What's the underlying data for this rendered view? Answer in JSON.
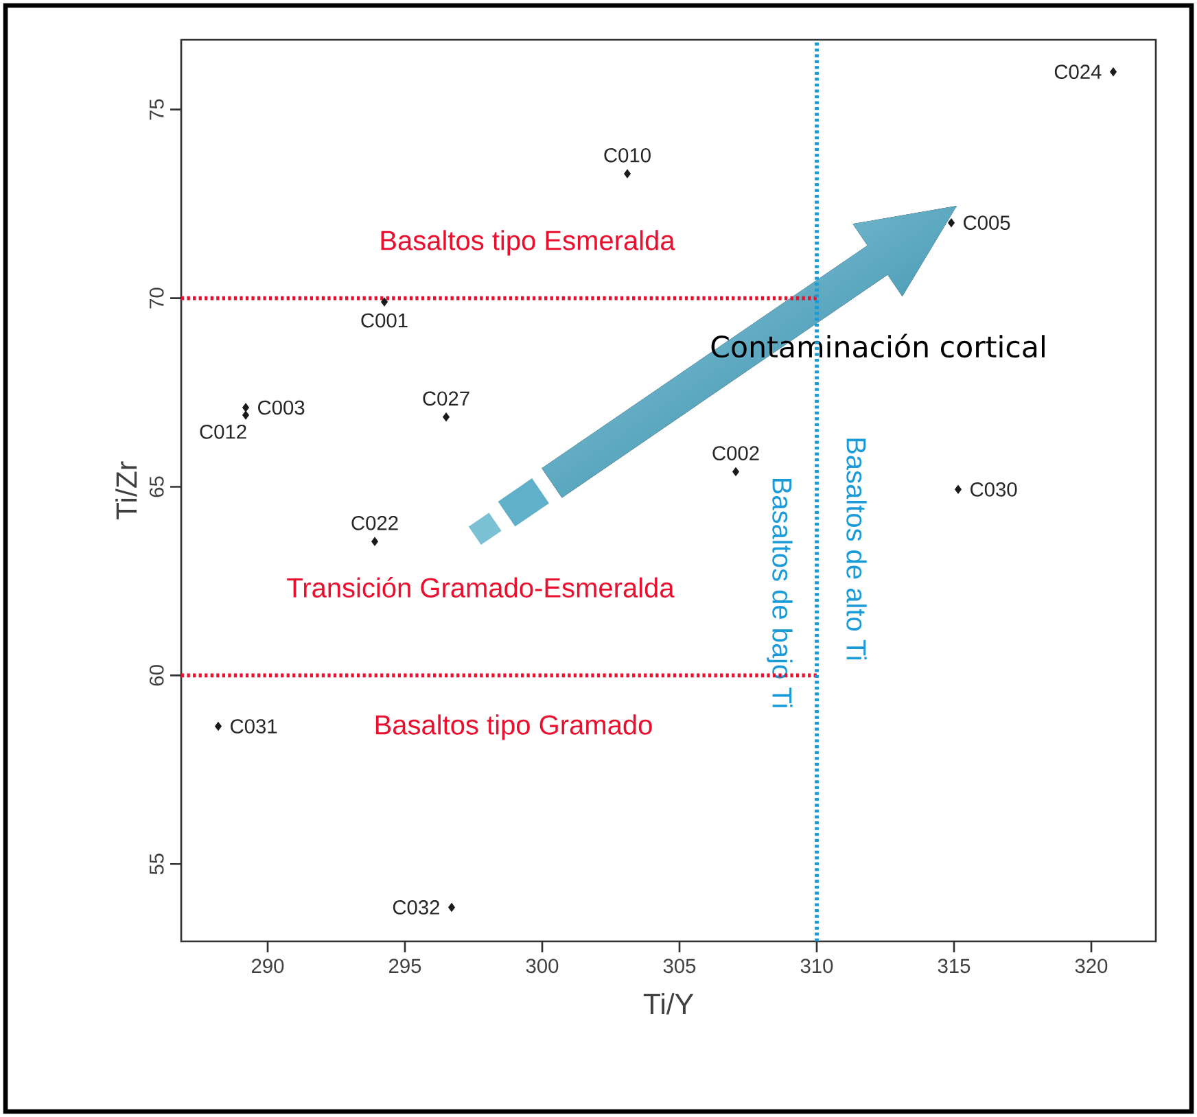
{
  "chart_data": {
    "type": "scatter",
    "xlabel": "Ti/Y",
    "ylabel": "Ti/Zr",
    "x": [
      320.8,
      303.1,
      314.9,
      294.25,
      289.2,
      289.2,
      296.5,
      307.05,
      315.15,
      293.9,
      288.2,
      296.7
    ],
    "values": [
      76.0,
      73.3,
      72.0,
      69.9,
      67.1,
      66.9,
      66.85,
      65.4,
      64.93,
      63.55,
      58.65,
      53.85
    ],
    "color": "#1a1a1a",
    "marker": "diamond",
    "xlim": [
      286.85,
      322.35
    ],
    "ylim": [
      52.95,
      76.85
    ],
    "xticks": [
      290,
      295,
      300,
      305,
      310,
      315,
      320
    ],
    "yticks": [
      55,
      60,
      65,
      70,
      75
    ],
    "ref_lines": [
      {
        "axis": "y",
        "value": 70,
        "color": "#e8102e",
        "line_style": "dotted"
      },
      {
        "axis": "y",
        "value": 60,
        "color": "#e8102e",
        "line_style": "dotted"
      },
      {
        "axis": "x",
        "value": 310,
        "color": "#1a9ad6",
        "line_style": "dotted"
      }
    ],
    "annotations": [
      "Basaltos tipo Esmeralda",
      "Transición Gramado-Esmeralda",
      "Basaltos tipo Gramado",
      "Contaminación cortical",
      "Basaltos de bajo Ti",
      "Basaltos de alto Ti",
      {
        "text": "C024",
        "x": 320.8,
        "y": 76.0
      },
      {
        "text": "C010",
        "x": 303.1,
        "y": 73.3
      },
      {
        "text": "C005",
        "x": 314.9,
        "y": 72.0
      },
      {
        "text": "C001",
        "x": 294.25,
        "y": 69.9
      },
      {
        "text": "C003",
        "x": 289.2,
        "y": 67.1
      },
      {
        "text": "C012",
        "x": 289.2,
        "y": 66.9
      },
      {
        "text": "C027",
        "x": 296.5,
        "y": 66.85
      },
      {
        "text": "C002",
        "x": 307.05,
        "y": 65.4
      },
      {
        "text": "C030",
        "x": 315.15,
        "y": 64.93
      },
      {
        "text": "C022",
        "x": 293.9,
        "y": 63.55
      },
      {
        "text": "C031",
        "x": 288.2,
        "y": 58.65
      },
      {
        "text": "C032",
        "x": 296.7,
        "y": 53.85
      }
    ]
  }
}
